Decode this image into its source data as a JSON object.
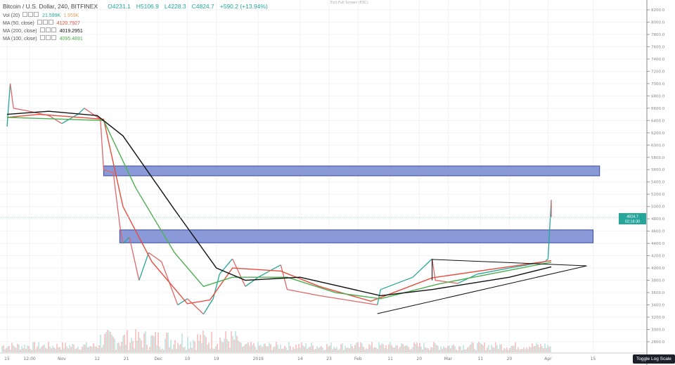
{
  "header": {
    "symbol": "Bitcoin / U.S. Dollar, 240, BITFINEX",
    "open": "O4231.1",
    "high": "H5106.9",
    "low": "L4228.3",
    "close": "C4824.7",
    "change": "+590.2 (+13.94%)",
    "exit_fullscreen": "Exit Full Screen (ESC)"
  },
  "indicators": [
    {
      "label": "Vol (20)",
      "values": [
        "21.599K",
        "1.959K"
      ],
      "colors": [
        "#26a69a",
        "#e0a060"
      ]
    },
    {
      "label": "MA (50, close)",
      "values": [
        "4120.7927"
      ],
      "colors": [
        "#e74c3c"
      ]
    },
    {
      "label": "MA (200, close)",
      "values": [
        "4019.2951"
      ],
      "colors": [
        "#111111"
      ]
    },
    {
      "label": "MA (100, close)",
      "values": [
        "4095.4891"
      ],
      "colors": [
        "#4caf50"
      ]
    }
  ],
  "tooltip": "Toggle Log Scale",
  "chart_data": {
    "type": "candlestick",
    "price_scale": {
      "min": 2800,
      "max": 8200,
      "step": 200
    },
    "y_ticks": [
      "8200.0",
      "8000.0",
      "7800.0",
      "7600.0",
      "7400.0",
      "7200.0",
      "7000.0",
      "6800.0",
      "6600.0",
      "6400.0",
      "6200.0",
      "6000.0",
      "5800.0",
      "5600.0",
      "5400.0",
      "5200.0",
      "5000.0",
      "4800.0",
      "4600.0",
      "4400.0",
      "4200.0",
      "4000.0",
      "3800.0",
      "3600.0",
      "3400.0",
      "3200.0",
      "3000.0",
      "2800.0"
    ],
    "x_ticks": [
      {
        "label": "15",
        "date": "2018-10-15"
      },
      {
        "label": "12:00",
        "date": "2018-10-22"
      },
      {
        "label": "Nov",
        "date": "2018-11-01"
      },
      {
        "label": "12",
        "date": "2018-11-12"
      },
      {
        "label": "21",
        "date": "2018-11-21"
      },
      {
        "label": "Dec",
        "date": "2018-12-01"
      },
      {
        "label": "10",
        "date": "2018-12-10"
      },
      {
        "label": "19",
        "date": "2018-12-19"
      },
      {
        "label": "2019",
        "date": "2019-01-01"
      },
      {
        "label": "14",
        "date": "2019-01-14"
      },
      {
        "label": "23",
        "date": "2019-01-23"
      },
      {
        "label": "Feb",
        "date": "2019-02-01"
      },
      {
        "label": "11",
        "date": "2019-02-11"
      },
      {
        "label": "20",
        "date": "2019-02-20"
      },
      {
        "label": "Mar",
        "date": "2019-03-01"
      },
      {
        "label": "11",
        "date": "2019-03-11"
      },
      {
        "label": "20",
        "date": "2019-03-20"
      },
      {
        "label": "Apr",
        "date": "2019-04-01"
      },
      {
        "label": "15",
        "date": "2019-04-15"
      }
    ],
    "last_price": {
      "value": "4824.7",
      "countdown": "02:18:30",
      "color": "#26a69a"
    },
    "price": [
      [
        "2018-10-15",
        6300
      ],
      [
        "2018-10-16",
        7000
      ],
      [
        "2018-10-17",
        6600
      ],
      [
        "2018-10-22",
        6550
      ],
      [
        "2018-10-28",
        6480
      ],
      [
        "2018-11-01",
        6350
      ],
      [
        "2018-11-06",
        6500
      ],
      [
        "2018-11-08",
        6600
      ],
      [
        "2018-11-13",
        6420
      ],
      [
        "2018-11-14",
        5600
      ],
      [
        "2018-11-17",
        5550
      ],
      [
        "2018-11-19",
        4700
      ],
      [
        "2018-11-20",
        4400
      ],
      [
        "2018-11-22",
        4500
      ],
      [
        "2018-11-25",
        3800
      ],
      [
        "2018-11-28",
        4250
      ],
      [
        "2018-12-02",
        4100
      ],
      [
        "2018-12-07",
        3400
      ],
      [
        "2018-12-10",
        3500
      ],
      [
        "2018-12-15",
        3250
      ],
      [
        "2018-12-18",
        3500
      ],
      [
        "2018-12-20",
        3900
      ],
      [
        "2018-12-24",
        4150
      ],
      [
        "2018-12-28",
        3700
      ],
      [
        "2019-01-01",
        3850
      ],
      [
        "2019-01-08",
        4050
      ],
      [
        "2019-01-10",
        3650
      ],
      [
        "2019-01-20",
        3550
      ],
      [
        "2019-02-01",
        3450
      ],
      [
        "2019-02-07",
        3400
      ],
      [
        "2019-02-08",
        3650
      ],
      [
        "2019-02-18",
        3850
      ],
      [
        "2019-02-24",
        4150
      ],
      [
        "2019-02-25",
        3800
      ],
      [
        "2019-03-04",
        3750
      ],
      [
        "2019-03-10",
        3900
      ],
      [
        "2019-03-20",
        4000
      ],
      [
        "2019-03-31",
        4100
      ],
      [
        "2019-04-01",
        4150
      ],
      [
        "2019-04-02",
        5106
      ],
      [
        "2019-04-02",
        4824.7
      ]
    ],
    "series": [
      {
        "name": "MA (50, close)",
        "color": "#e74c3c",
        "points": [
          [
            "2018-10-15",
            6450
          ],
          [
            "2018-10-25",
            6500
          ],
          [
            "2018-11-14",
            6420
          ],
          [
            "2018-11-20",
            5000
          ],
          [
            "2018-11-29",
            4100
          ],
          [
            "2018-12-10",
            3420
          ],
          [
            "2018-12-17",
            3480
          ],
          [
            "2018-12-24",
            4000
          ],
          [
            "2019-01-08",
            3950
          ],
          [
            "2019-01-20",
            3700
          ],
          [
            "2019-02-05",
            3460
          ],
          [
            "2019-02-24",
            3840
          ],
          [
            "2019-04-02",
            4120
          ]
        ]
      },
      {
        "name": "MA (100, close)",
        "color": "#4caf50",
        "points": [
          [
            "2018-10-15",
            6450
          ],
          [
            "2018-11-14",
            6400
          ],
          [
            "2018-11-24",
            5300
          ],
          [
            "2018-12-06",
            4250
          ],
          [
            "2018-12-15",
            3700
          ],
          [
            "2018-12-24",
            3850
          ],
          [
            "2019-01-10",
            3850
          ],
          [
            "2019-01-25",
            3600
          ],
          [
            "2019-02-08",
            3500
          ],
          [
            "2019-02-26",
            3740
          ],
          [
            "2019-04-02",
            4095
          ]
        ]
      },
      {
        "name": "MA (200, close)",
        "color": "#111111",
        "points": [
          [
            "2018-10-15",
            6500
          ],
          [
            "2018-10-28",
            6550
          ],
          [
            "2018-11-12",
            6480
          ],
          [
            "2018-11-20",
            6150
          ],
          [
            "2018-12-06",
            4950
          ],
          [
            "2018-12-19",
            4000
          ],
          [
            "2018-12-28",
            3800
          ],
          [
            "2019-01-14",
            3850
          ],
          [
            "2019-02-08",
            3550
          ],
          [
            "2019-02-24",
            3650
          ],
          [
            "2019-03-20",
            3850
          ],
          [
            "2019-04-02",
            4019
          ]
        ]
      }
    ],
    "drawings": {
      "zones": [
        {
          "from": "2018-11-14",
          "to": "2019-04-17",
          "high": 5660,
          "low": 5500
        },
        {
          "from": "2018-11-19",
          "to": "2019-04-15",
          "high": 4620,
          "low": 4410
        }
      ],
      "triangle": [
        [
          "2019-02-24",
          4140
        ],
        [
          "2019-04-13",
          4035
        ],
        [
          "2019-02-07",
          3257
        ]
      ]
    }
  }
}
